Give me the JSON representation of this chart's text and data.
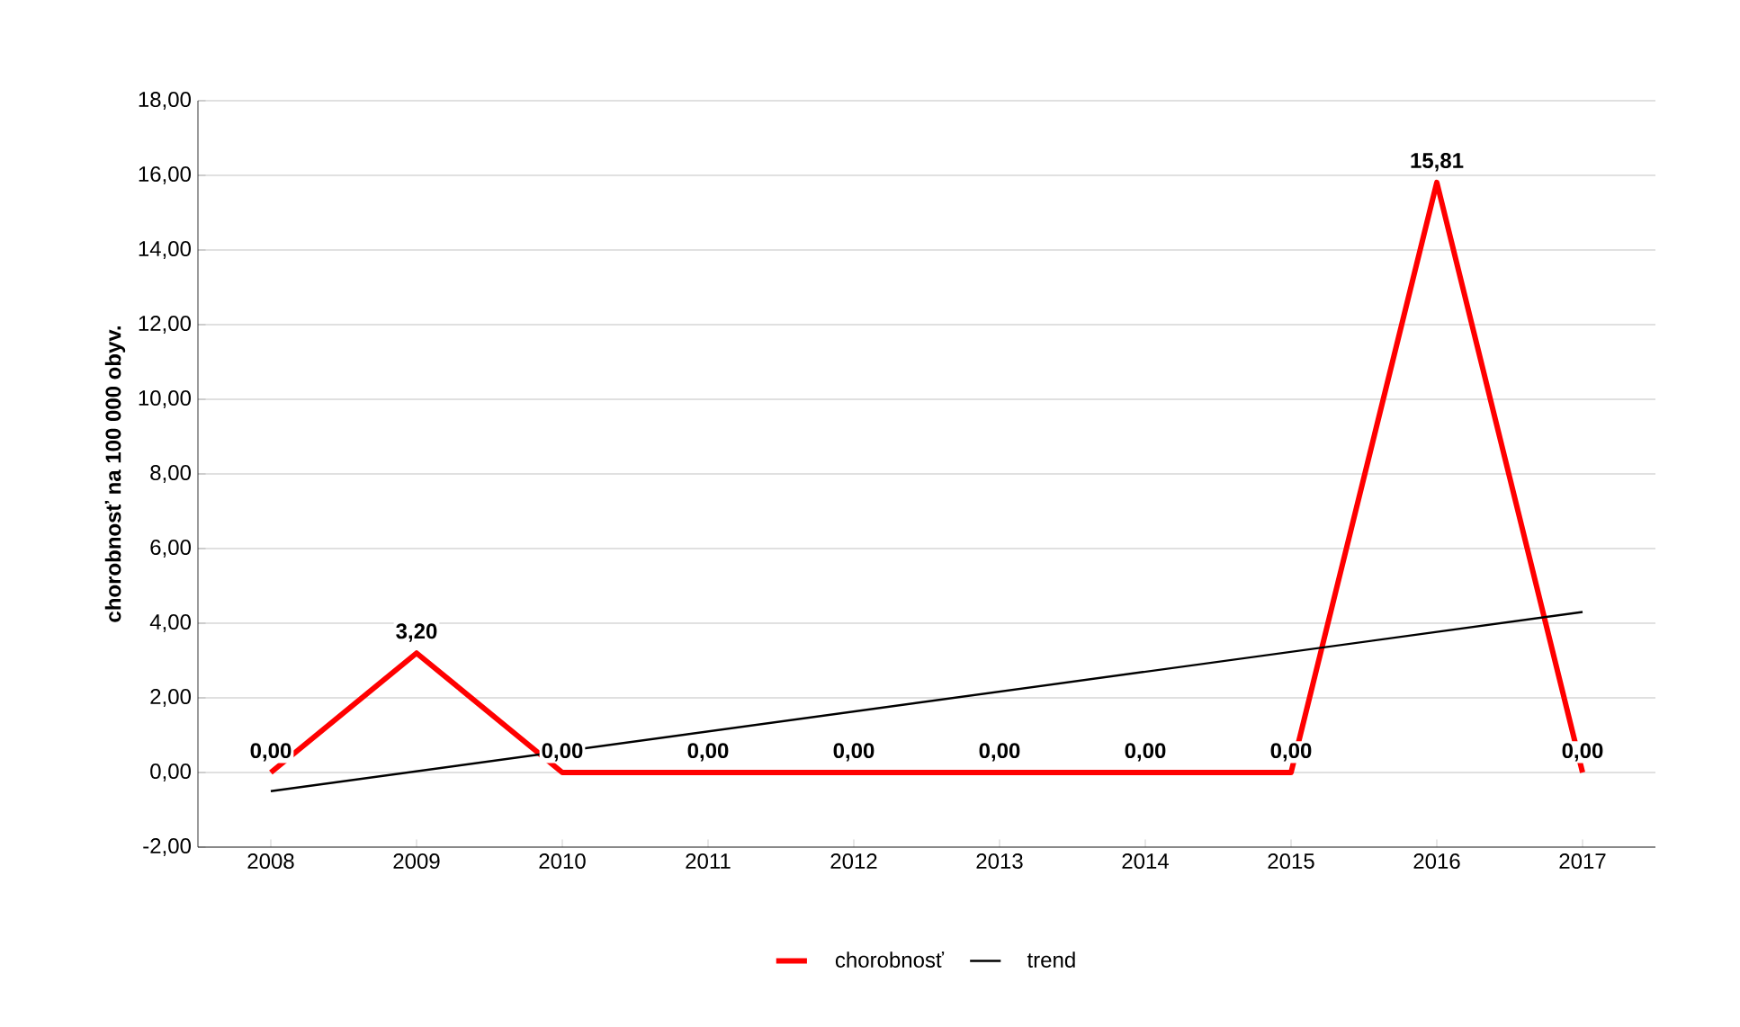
{
  "chart_data": {
    "type": "line",
    "ylabel": "chorobnosť na 100 000 obyv.",
    "x": [
      2008,
      2009,
      2010,
      2011,
      2012,
      2013,
      2014,
      2015,
      2016,
      2017
    ],
    "xlim": [
      2007.5,
      2017.5
    ],
    "xticks": [
      2008,
      2009,
      2010,
      2011,
      2012,
      2013,
      2014,
      2015,
      2016,
      2017
    ],
    "ylim": [
      -2,
      18
    ],
    "yticks": [
      {
        "value": -2,
        "label": "-2,00"
      },
      {
        "value": 0,
        "label": "0,00"
      },
      {
        "value": 2,
        "label": "2,00"
      },
      {
        "value": 4,
        "label": "4,00"
      },
      {
        "value": 6,
        "label": "6,00"
      },
      {
        "value": 8,
        "label": "8,00"
      },
      {
        "value": 10,
        "label": "10,00"
      },
      {
        "value": 12,
        "label": "12,00"
      },
      {
        "value": 14,
        "label": "14,00"
      },
      {
        "value": 16,
        "label": "16,00"
      },
      {
        "value": 18,
        "label": "18,00"
      }
    ],
    "series": [
      {
        "name": "chorobnosť",
        "color": "#ff0000",
        "values": [
          0,
          3.2,
          0,
          0,
          0,
          0,
          0,
          0,
          15.81,
          0
        ],
        "value_labels": [
          "0,00",
          "3,20",
          "0,00",
          "0,00",
          "0,00",
          "0,00",
          "0,00",
          "0,00",
          "15,81",
          "0,00"
        ]
      },
      {
        "name": "trend",
        "type": "line",
        "color": "#000000",
        "x": [
          2008,
          2017
        ],
        "values": [
          -0.5,
          4.3
        ]
      }
    ],
    "grid": "y",
    "legend": "bottom"
  }
}
